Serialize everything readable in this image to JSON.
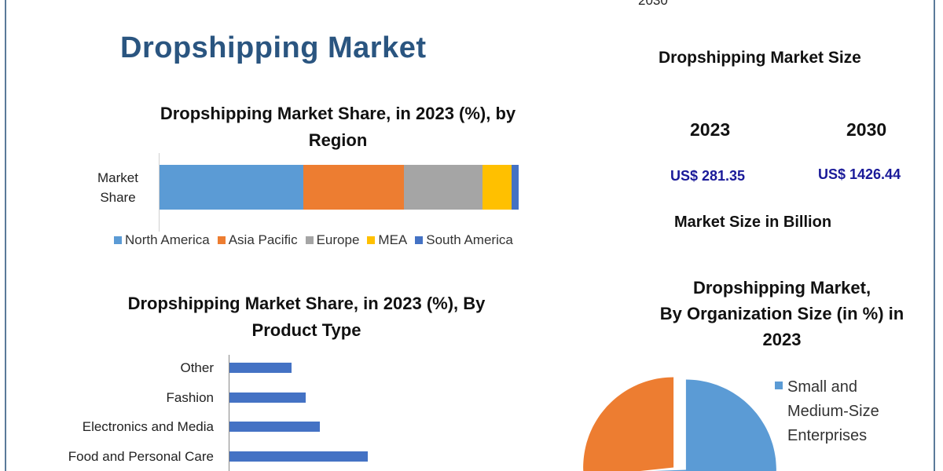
{
  "top_partial_text": "2030",
  "main_title": "Dropshipping Market",
  "market_size": {
    "title": "Dropshipping Market Size",
    "years": [
      "2023",
      "2030"
    ],
    "values": [
      "US$ 281.35",
      "US$ 1426.44"
    ],
    "unit_label": "Market Size in Billion"
  },
  "chart_data": [
    {
      "type": "bar",
      "orientation": "horizontal-stacked",
      "title_line1": "Dropshipping Market Share, in 2023 (%), by",
      "title_line2": "Region",
      "category_label": "Market Share",
      "legend_position": "bottom",
      "series": [
        {
          "name": "North America",
          "value": 40,
          "color": "#5b9bd5"
        },
        {
          "name": "Asia Pacific",
          "value": 28,
          "color": "#ed7d31"
        },
        {
          "name": "Europe",
          "value": 22,
          "color": "#a5a5a5"
        },
        {
          "name": "MEA",
          "value": 8,
          "color": "#ffc000"
        },
        {
          "name": "South America",
          "value": 2,
          "color": "#4472c4"
        }
      ]
    },
    {
      "type": "bar",
      "orientation": "horizontal",
      "title_line1": "Dropshipping Market Share, in 2023 (%), By",
      "title_line2": "Product Type",
      "categories": [
        "Other",
        "Fashion",
        "Electronics and Media",
        "Food and Personal Care"
      ],
      "values": [
        13,
        16,
        19,
        29
      ],
      "color": "#4472c4"
    },
    {
      "type": "pie",
      "title_line1": "Dropshipping Market,",
      "title_line2": "By Organization Size (in %) in",
      "title_line3": "2023",
      "legend_position": "right",
      "slices": [
        {
          "name": "Small and Medium-Size Enterprises",
          "name_lines": [
            "Small and",
            "Medium-Size",
            "Enterprises"
          ],
          "value": 56,
          "color": "#5b9bd5"
        },
        {
          "value": 44,
          "color": "#ed7d31"
        }
      ]
    }
  ]
}
